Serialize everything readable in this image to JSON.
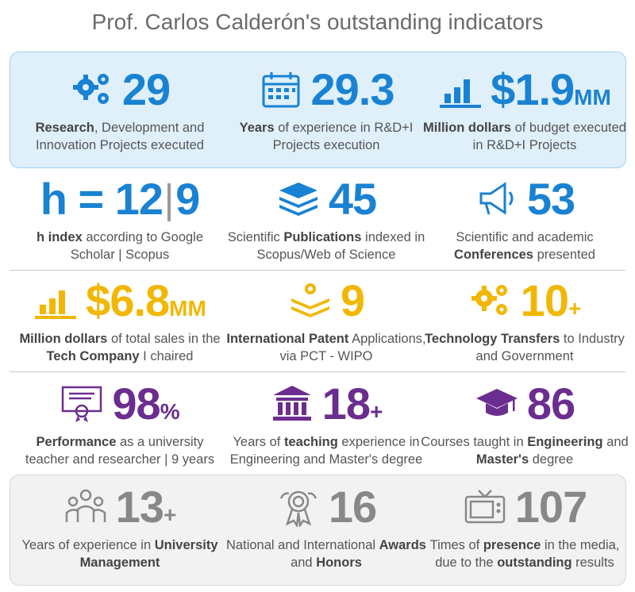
{
  "title": "Prof. Carlos Calderón's outstanding indicators",
  "colors": {
    "blue": "#1a82d2",
    "yellow": "#f2b705",
    "purple": "#6b2d8f",
    "gray": "#888888"
  },
  "row1": [
    {
      "icon": "gears-icon",
      "value": "29",
      "suffix": "",
      "label_bold": "Research",
      "label_rest": ", Development and Innovation Projects executed"
    },
    {
      "icon": "calendar-icon",
      "value": "29.3",
      "suffix": "",
      "label_bold": "Years",
      "label_rest": " of experience in R&D+I Projects execution"
    },
    {
      "icon": "bar-chart-icon",
      "value": "$1.9",
      "suffix": "MM",
      "label_bold": "Million dollars",
      "label_rest": " of budget executed in R&D+I Projects"
    }
  ],
  "row2": [
    {
      "icon": "",
      "value_a": "h = 12",
      "value_b": "9",
      "label_bold": "h index",
      "label_rest": " according to Google Scholar | Scopus"
    },
    {
      "icon": "layers-icon",
      "value": "45",
      "label_pre": "Scientific ",
      "label_bold": "Publications",
      "label_rest": " indexed in Scopus/Web of Science"
    },
    {
      "icon": "megaphone-icon",
      "value": "53",
      "label_pre": "Scientific and academic ",
      "label_bold": "Conferences",
      "label_rest": " presented"
    }
  ],
  "row3": [
    {
      "icon": "bar-chart-icon",
      "value": "$6.8",
      "suffix": "MM",
      "label_bold": "Million dollars",
      "label_mid": " of total sales in the ",
      "label_bold2": "Tech Company",
      "label_rest": " I chaired"
    },
    {
      "icon": "patent-layers-icon",
      "value": "9",
      "label_bold": "International Patent",
      "label_rest": " Applications, via PCT - WIPO"
    },
    {
      "icon": "gears-icon",
      "value": "10",
      "suffix": "+",
      "label_bold": "Technology Transfers",
      "label_rest": " to Industry and Government"
    }
  ],
  "row4": [
    {
      "icon": "diploma-icon",
      "value": "98",
      "suffix": "%",
      "label_bold": "Performance",
      "label_rest": " as a university teacher and researcher | 9 years"
    },
    {
      "icon": "institution-icon",
      "value": "18",
      "suffix": "+",
      "label_pre": "Years of ",
      "label_bold": "teaching",
      "label_rest": " experience in Engineering and Master's degree"
    },
    {
      "icon": "graduation-cap-icon",
      "value": "86",
      "label_pre": "Courses taught in ",
      "label_bold": "Engineering",
      "label_mid": " and ",
      "label_bold2": "Master's",
      "label_rest": " degree"
    }
  ],
  "row5": [
    {
      "icon": "team-icon",
      "value": "13",
      "suffix": "+",
      "label_pre": "Years of experience in ",
      "label_bold": "University Management"
    },
    {
      "icon": "award-icon",
      "value": "16",
      "label_pre": "National and International ",
      "label_bold": "Awards",
      "label_mid": " and ",
      "label_bold2": "Honors"
    },
    {
      "icon": "tv-icon",
      "value": "107",
      "label_pre": "Times of ",
      "label_bold": "presence",
      "label_mid": " in the media, due to the ",
      "label_bold2": "outstanding",
      "label_rest": " results"
    }
  ]
}
